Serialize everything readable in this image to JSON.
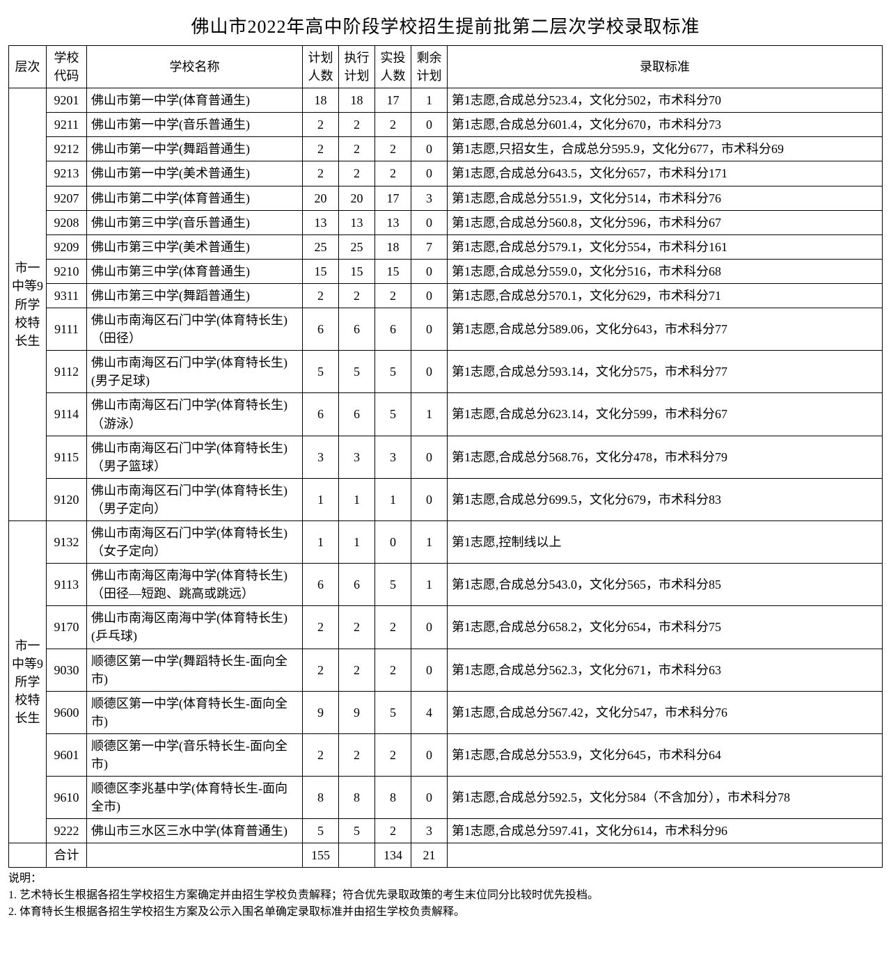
{
  "title": "佛山市2022年高中阶段学校招生提前批第二层次学校录取标准",
  "headers": {
    "level": "层次",
    "code": "学校代码",
    "name": "学校名称",
    "plan": "计划人数",
    "exec": "执行计划",
    "actual": "实投人数",
    "remain": "剩余计划",
    "standard": "录取标准"
  },
  "groups": [
    {
      "level_label": "市一中等9所学校特长生",
      "rows": [
        {
          "code": "9201",
          "name": "佛山市第一中学(体育普通生)",
          "plan": "18",
          "exec": "18",
          "actual": "17",
          "remain": "1",
          "std": "第1志愿,合成总分523.4，文化分502，市术科分70"
        },
        {
          "code": "9211",
          "name": "佛山市第一中学(音乐普通生)",
          "plan": "2",
          "exec": "2",
          "actual": "2",
          "remain": "0",
          "std": "第1志愿,合成总分601.4，文化分670，市术科分73"
        },
        {
          "code": "9212",
          "name": "佛山市第一中学(舞蹈普通生)",
          "plan": "2",
          "exec": "2",
          "actual": "2",
          "remain": "0",
          "std": "第1志愿,只招女生，合成总分595.9，文化分677，市术科分69"
        },
        {
          "code": "9213",
          "name": "佛山市第一中学(美术普通生)",
          "plan": "2",
          "exec": "2",
          "actual": "2",
          "remain": "0",
          "std": "第1志愿,合成总分643.5，文化分657，市术科分171"
        },
        {
          "code": "9207",
          "name": "佛山市第二中学(体育普通生)",
          "plan": "20",
          "exec": "20",
          "actual": "17",
          "remain": "3",
          "std": "第1志愿,合成总分551.9，文化分514，市术科分76"
        },
        {
          "code": "9208",
          "name": "佛山市第三中学(音乐普通生)",
          "plan": "13",
          "exec": "13",
          "actual": "13",
          "remain": "0",
          "std": "第1志愿,合成总分560.8，文化分596，市术科分67"
        },
        {
          "code": "9209",
          "name": "佛山市第三中学(美术普通生)",
          "plan": "25",
          "exec": "25",
          "actual": "18",
          "remain": "7",
          "std": "第1志愿,合成总分579.1，文化分554，市术科分161"
        },
        {
          "code": "9210",
          "name": "佛山市第三中学(体育普通生)",
          "plan": "15",
          "exec": "15",
          "actual": "15",
          "remain": "0",
          "std": "第1志愿,合成总分559.0，文化分516，市术科分68"
        },
        {
          "code": "9311",
          "name": "佛山市第三中学(舞蹈普通生)",
          "plan": "2",
          "exec": "2",
          "actual": "2",
          "remain": "0",
          "std": "第1志愿,合成总分570.1，文化分629，市术科分71"
        },
        {
          "code": "9111",
          "name": "佛山市南海区石门中学(体育特长生)（田径）",
          "plan": "6",
          "exec": "6",
          "actual": "6",
          "remain": "0",
          "std": "第1志愿,合成总分589.06，文化分643，市术科分77"
        },
        {
          "code": "9112",
          "name": "佛山市南海区石门中学(体育特长生)(男子足球)",
          "plan": "5",
          "exec": "5",
          "actual": "5",
          "remain": "0",
          "std": "第1志愿,合成总分593.14，文化分575，市术科分77"
        },
        {
          "code": "9114",
          "name": "佛山市南海区石门中学(体育特长生)（游泳）",
          "plan": "6",
          "exec": "6",
          "actual": "5",
          "remain": "1",
          "std": "第1志愿,合成总分623.14，文化分599，市术科分67"
        },
        {
          "code": "9115",
          "name": "佛山市南海区石门中学(体育特长生)（男子篮球）",
          "plan": "3",
          "exec": "3",
          "actual": "3",
          "remain": "0",
          "std": "第1志愿,合成总分568.76，文化分478，市术科分79"
        },
        {
          "code": "9120",
          "name": "佛山市南海区石门中学(体育特长生)（男子定向）",
          "plan": "1",
          "exec": "1",
          "actual": "1",
          "remain": "0",
          "std": "第1志愿,合成总分699.5，文化分679，市术科分83"
        }
      ]
    },
    {
      "level_label": "市一中等9所学校特长生",
      "rows": [
        {
          "code": "9132",
          "name": "佛山市南海区石门中学(体育特长生)（女子定向）",
          "plan": "1",
          "exec": "1",
          "actual": "0",
          "remain": "1",
          "std": "第1志愿,控制线以上"
        },
        {
          "code": "9113",
          "name": "佛山市南海区南海中学(体育特长生)（田径—短跑、跳高或跳远）",
          "plan": "6",
          "exec": "6",
          "actual": "5",
          "remain": "1",
          "std": "第1志愿,合成总分543.0，文化分565，市术科分85"
        },
        {
          "code": "9170",
          "name": "佛山市南海区南海中学(体育特长生)(乒乓球)",
          "plan": "2",
          "exec": "2",
          "actual": "2",
          "remain": "0",
          "std": "第1志愿,合成总分658.2，文化分654，市术科分75"
        },
        {
          "code": "9030",
          "name": "顺德区第一中学(舞蹈特长生-面向全市)",
          "plan": "2",
          "exec": "2",
          "actual": "2",
          "remain": "0",
          "std": "第1志愿,合成总分562.3，文化分671，市术科分63"
        },
        {
          "code": "9600",
          "name": "顺德区第一中学(体育特长生-面向全市)",
          "plan": "9",
          "exec": "9",
          "actual": "5",
          "remain": "4",
          "std": "第1志愿,合成总分567.42，文化分547，市术科分76"
        },
        {
          "code": "9601",
          "name": "顺德区第一中学(音乐特长生-面向全市)",
          "plan": "2",
          "exec": "2",
          "actual": "2",
          "remain": "0",
          "std": "第1志愿,合成总分553.9，文化分645，市术科分64"
        },
        {
          "code": "9610",
          "name": "顺德区李兆基中学(体育特长生-面向全市)",
          "plan": "8",
          "exec": "8",
          "actual": "8",
          "remain": "0",
          "std": "第1志愿,合成总分592.5，文化分584（不含加分），市术科分78"
        },
        {
          "code": "9222",
          "name": "佛山市三水区三水中学(体育普通生)",
          "plan": "5",
          "exec": "5",
          "actual": "2",
          "remain": "3",
          "std": "第1志愿,合成总分597.41，文化分614，市术科分96"
        }
      ]
    }
  ],
  "total_row": {
    "label": "合计",
    "plan": "155",
    "exec": "",
    "actual": "134",
    "remain": "21",
    "std": ""
  },
  "notes": {
    "heading": "说明：",
    "n1": "1. 艺术特长生根据各招生学校招生方案确定并由招生学校负责解释；符合优先录取政策的考生末位同分比较时优先投档。",
    "n2": "2. 体育特长生根据各招生学校招生方案及公示入围名单确定录取标准并由招生学校负责解释。"
  },
  "style": {
    "border_color": "#000000",
    "background_color": "#ffffff",
    "title_fontsize": 26,
    "cell_fontsize": 18,
    "notes_fontsize": 16,
    "font_family": "SimSun"
  }
}
